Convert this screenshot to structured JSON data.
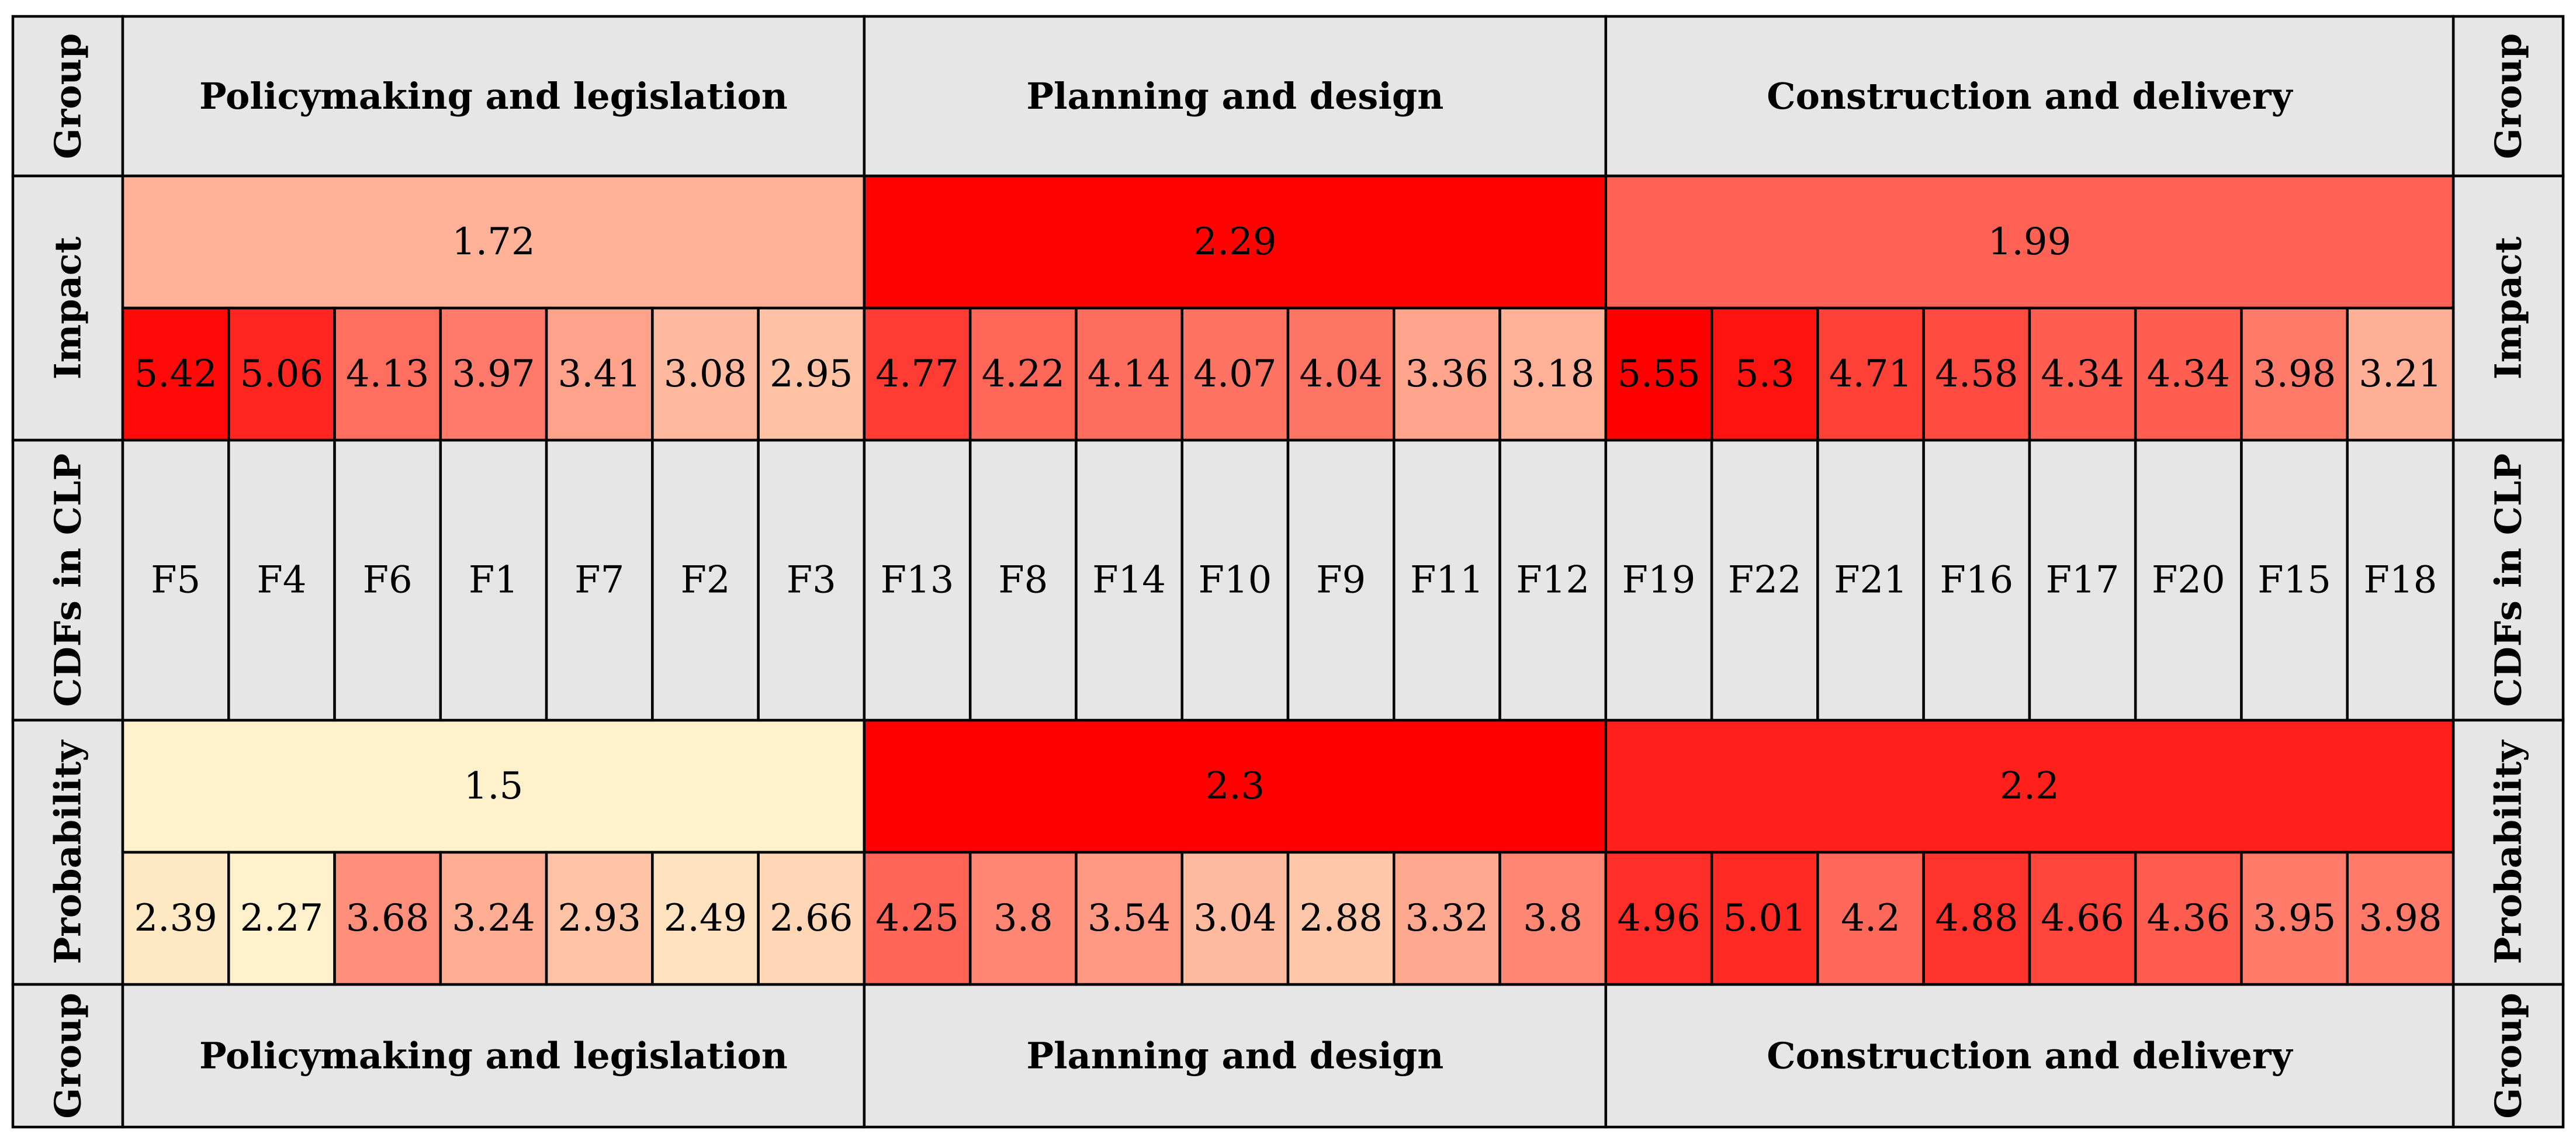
{
  "chart_data": {
    "type": "heatmap",
    "row_labels": {
      "group": "Group",
      "impact": "Impact",
      "cdfs": "CDFs in CLP",
      "probability": "Probability"
    },
    "groups": [
      {
        "name": "Policymaking and legislation",
        "impact": 1.72,
        "probability": 1.5,
        "factors": [
          "F5",
          "F4",
          "F6",
          "F1",
          "F7",
          "F2",
          "F3"
        ],
        "factor_impact": [
          5.42,
          5.06,
          4.13,
          3.97,
          3.41,
          3.08,
          2.95
        ],
        "factor_probability": [
          2.39,
          2.27,
          3.68,
          3.24,
          2.93,
          2.49,
          2.66
        ]
      },
      {
        "name": "Planning and design",
        "impact": 2.29,
        "probability": 2.3,
        "factors": [
          "F13",
          "F8",
          "F14",
          "F10",
          "F9",
          "F11",
          "F12"
        ],
        "factor_impact": [
          4.77,
          4.22,
          4.14,
          4.07,
          4.04,
          3.36,
          3.18
        ],
        "factor_probability": [
          4.25,
          3.8,
          3.54,
          3.04,
          2.88,
          3.32,
          3.8
        ]
      },
      {
        "name": "Construction and delivery",
        "impact": 1.99,
        "probability": 2.2,
        "factors": [
          "F19",
          "F22",
          "F21",
          "F16",
          "F17",
          "F20",
          "F15",
          "F18"
        ],
        "factor_impact": [
          5.55,
          5.3,
          4.71,
          4.58,
          4.34,
          4.34,
          3.98,
          3.21
        ],
        "factor_probability": [
          4.96,
          5.01,
          4.2,
          4.88,
          4.66,
          4.36,
          3.95,
          3.98
        ]
      }
    ],
    "group_color_range": [
      1.5,
      2.3
    ],
    "factor_color_range": [
      2.27,
      5.55
    ],
    "colors": {
      "low": "#fff1cc",
      "mid": "#ff7f6e",
      "high": "#ff0000",
      "label_bg": "#e6e6e6",
      "grid": "#000000"
    }
  }
}
